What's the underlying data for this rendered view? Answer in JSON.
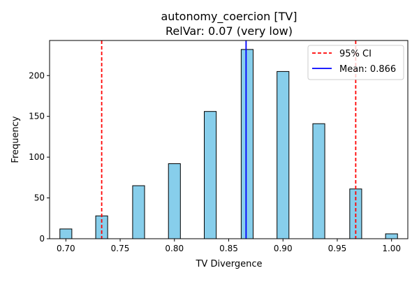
{
  "chart_data": {
    "type": "bar",
    "title": "autonomy_coercion [TV]",
    "subtitle": "RelVar: 0.07 (very low)",
    "xlabel": "TV Divergence",
    "ylabel": "Frequency",
    "xlim": [
      0.685,
      1.015
    ],
    "ylim": [
      0,
      243
    ],
    "bin_width": 0.011,
    "x_ticks": [
      "0.70",
      "0.75",
      "0.80",
      "0.85",
      "0.90",
      "0.95",
      "1.00"
    ],
    "x_tick_values": [
      0.7,
      0.75,
      0.8,
      0.85,
      0.9,
      0.95,
      1.0
    ],
    "y_ticks": [
      "0",
      "50",
      "100",
      "150",
      "200"
    ],
    "y_tick_values": [
      0,
      50,
      100,
      150,
      200
    ],
    "bins": [
      {
        "x": 0.7,
        "count": 12
      },
      {
        "x": 0.733,
        "count": 28
      },
      {
        "x": 0.767,
        "count": 65
      },
      {
        "x": 0.8,
        "count": 92
      },
      {
        "x": 0.833,
        "count": 156
      },
      {
        "x": 0.867,
        "count": 232
      },
      {
        "x": 0.9,
        "count": 205
      },
      {
        "x": 0.933,
        "count": 141
      },
      {
        "x": 0.967,
        "count": 61
      },
      {
        "x": 1.0,
        "count": 6
      }
    ],
    "ci_lines": [
      0.733,
      0.967
    ],
    "mean_line": 0.866,
    "bar_color": "#87CEEB",
    "bar_edge": "#000000",
    "ci_color": "#ff0000",
    "mean_color": "#0000ff",
    "legend": {
      "position": "top-right",
      "entries": [
        {
          "label": "95% CI",
          "style": "dashed",
          "color": "#ff0000"
        },
        {
          "label": "Mean: 0.866",
          "style": "solid",
          "color": "#0000ff"
        }
      ]
    }
  }
}
